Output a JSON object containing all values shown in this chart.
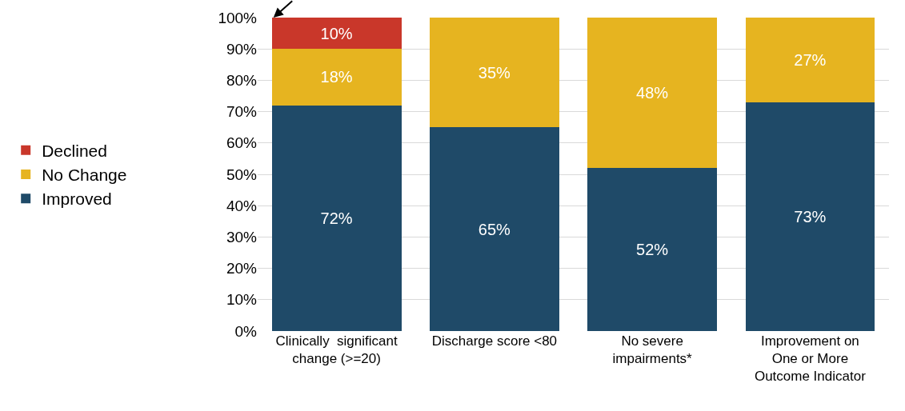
{
  "chart_data": {
    "type": "bar",
    "stacked": true,
    "categories": [
      "Clinically  significant\nchange (>=20)",
      "Discharge score <80",
      "No severe\nimpairments*",
      "Improvement on\nOne or More\nOutcome Indicator"
    ],
    "series": [
      {
        "name": "Improved",
        "color": "#1f4a68",
        "values": [
          72,
          65,
          52,
          73
        ],
        "value_labels": [
          "72%",
          "65%",
          "52%",
          "73%"
        ]
      },
      {
        "name": "No Change",
        "color": "#e6b420",
        "values": [
          18,
          35,
          48,
          27
        ],
        "value_labels": [
          "18%",
          "35%",
          "48%",
          "27%"
        ]
      },
      {
        "name": "Declined",
        "color": "#c9372a",
        "values": [
          10,
          null,
          null,
          null
        ],
        "value_labels": [
          "10%",
          null,
          null,
          null
        ]
      }
    ],
    "ylim": [
      0,
      100
    ],
    "yticks": [
      {
        "value": 0,
        "label": "0%"
      },
      {
        "value": 10,
        "label": "10%"
      },
      {
        "value": 20,
        "label": "20%"
      },
      {
        "value": 30,
        "label": "30%"
      },
      {
        "value": 40,
        "label": "40%"
      },
      {
        "value": 50,
        "label": "50%"
      },
      {
        "value": 60,
        "label": "60%"
      },
      {
        "value": 70,
        "label": "70%"
      },
      {
        "value": 80,
        "label": "80%"
      },
      {
        "value": 90,
        "label": "90%"
      },
      {
        "value": 100,
        "label": "100%"
      }
    ],
    "grid": "y",
    "legend": "left"
  }
}
